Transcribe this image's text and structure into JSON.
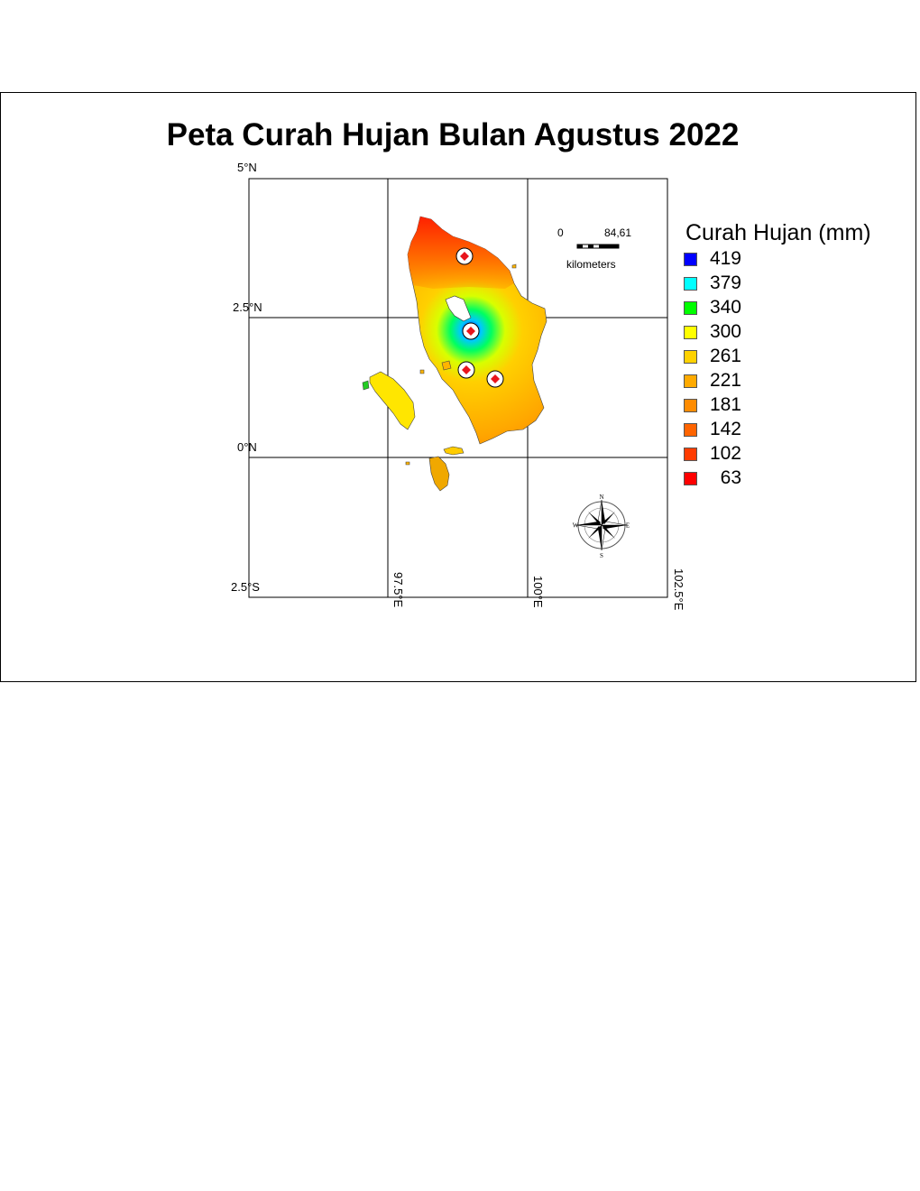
{
  "title": "Peta Curah Hujan Bulan Agustus 2022",
  "lat_labels": [
    "5°N",
    "2.5°N",
    "0°N",
    "2.5°S"
  ],
  "lon_labels": [
    "97.5°E",
    "100°E",
    "102.5°E"
  ],
  "scale_bar": {
    "start": "0",
    "end": "84,61",
    "unit": "kilometers"
  },
  "legend": {
    "title": "Curah Hujan (mm)",
    "items": [
      {
        "label": "419",
        "color": "#0000ff"
      },
      {
        "label": "379",
        "color": "#00ffff"
      },
      {
        "label": "340",
        "color": "#00ff00"
      },
      {
        "label": "300",
        "color": "#ffff00"
      },
      {
        "label": "261",
        "color": "#ffd200"
      },
      {
        "label": "221",
        "color": "#ffaa00"
      },
      {
        "label": "181",
        "color": "#ff8c00"
      },
      {
        "label": "142",
        "color": "#ff6400"
      },
      {
        "label": "102",
        "color": "#ff3c00"
      },
      {
        "label": "63",
        "color": "#ff0000"
      }
    ]
  },
  "compass": {
    "n": "N",
    "e": "E",
    "s": "S",
    "w": "W"
  },
  "station_count": 4
}
